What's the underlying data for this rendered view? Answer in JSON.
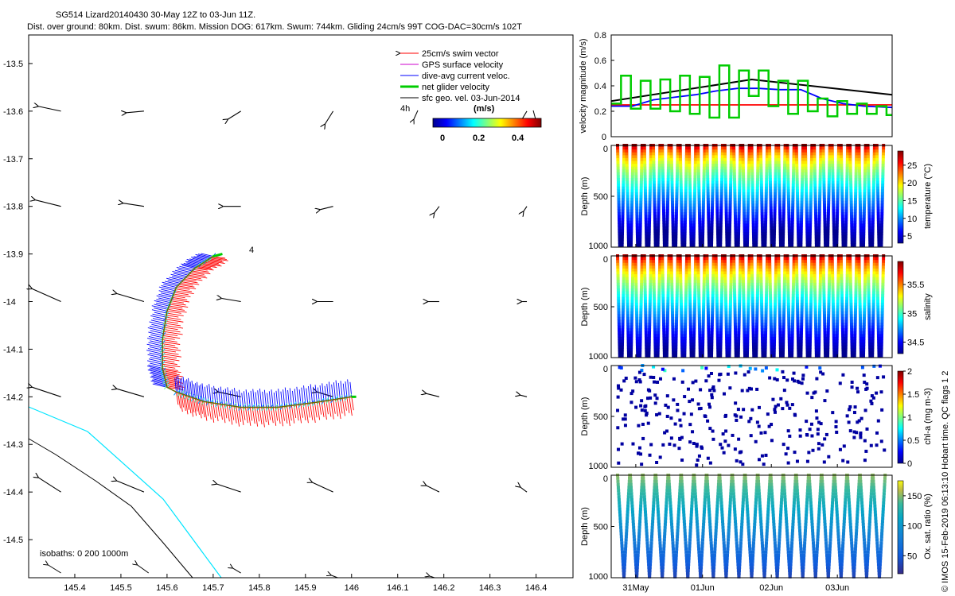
{
  "title_line1": "SG514 Lizard20140430 30-May 12Z to 03-Jun 11Z.",
  "title_line2": "Dist. over ground: 80km. Dist. swum: 86km. Mission DOG: 617km. Swum: 744km. Gliding 24cm/s 99T COG-DAC=30cm/s 102T",
  "map": {
    "xlim": [
      145.3,
      146.48
    ],
    "ylim": [
      -14.58,
      -13.44
    ],
    "xticks": [
      145.4,
      145.5,
      145.6,
      145.7,
      145.8,
      145.9,
      146,
      146.1,
      146.2,
      146.3,
      146.4
    ],
    "yticks": [
      -13.5,
      -13.6,
      -13.7,
      -13.8,
      -13.9,
      -14,
      -14.1,
      -14.2,
      -14.3,
      -14.4,
      -14.5
    ],
    "legend": [
      "25cm/s swim vector",
      "GPS surface velocity",
      "dive-avg current veloc.",
      "net glider velocity",
      "sfc geo. vel. 03-Jun-2014"
    ],
    "legend_colors": [
      "#ff0000",
      "#cc00cc",
      "#0000ff",
      "#00cc00",
      "#000000"
    ],
    "label_4h": "4h",
    "label_4": "4",
    "colorbar_title": "(m/s)",
    "colorbar_ticks": [
      "0",
      "0.2",
      "0.4"
    ],
    "isobaths_label": "isobaths: 0   200  1000m",
    "track": [
      [
        145.6,
        -14.18
      ],
      [
        145.59,
        -14.11
      ],
      [
        145.59,
        -14.05
      ],
      [
        145.61,
        -13.99
      ],
      [
        145.64,
        -13.95
      ],
      [
        145.67,
        -13.92
      ],
      [
        145.7,
        -13.91
      ],
      [
        145.62,
        -14.19
      ],
      [
        145.68,
        -14.21
      ],
      [
        145.76,
        -14.22
      ],
      [
        145.84,
        -14.22
      ],
      [
        145.92,
        -14.21
      ],
      [
        146.0,
        -14.2
      ]
    ]
  },
  "chart_data": [
    {
      "type": "line",
      "title": "velocity magnitude",
      "ylabel": "velocity magnitude (m/s)",
      "ylim": [
        0,
        0.8
      ],
      "yticks": [
        "0",
        "0.2",
        "0.4",
        "0.6",
        "0.8"
      ],
      "xlim": [
        0,
        4
      ],
      "series": [
        {
          "name": "sfc geo. vel.",
          "color": "#000000",
          "x": [
            0,
            2,
            4
          ],
          "y": [
            0.28,
            0.45,
            0.33
          ]
        },
        {
          "name": "25cm/s swim vector",
          "color": "#ff0000",
          "x": [
            0,
            4
          ],
          "y": [
            0.25,
            0.25
          ]
        },
        {
          "name": "dive-avg current veloc.",
          "color": "#0000ff",
          "x": [
            0,
            0.3,
            0.6,
            0.9,
            1.2,
            1.5,
            1.8,
            2.1,
            2.4,
            2.7,
            3.0,
            3.3,
            3.6,
            4.0
          ],
          "y": [
            0.24,
            0.24,
            0.29,
            0.31,
            0.33,
            0.36,
            0.38,
            0.38,
            0.37,
            0.37,
            0.3,
            0.26,
            0.24,
            0.23
          ]
        },
        {
          "name": "net glider velocity",
          "color": "#00cc00",
          "x": [
            0,
            0.14,
            0.14,
            0.28,
            0.28,
            0.42,
            0.42,
            0.56,
            0.56,
            0.7,
            0.7,
            0.84,
            0.84,
            0.98,
            0.98,
            1.12,
            1.12,
            1.26,
            1.26,
            1.4,
            1.4,
            1.54,
            1.54,
            1.68,
            1.68,
            1.82,
            1.82,
            1.96,
            1.96,
            2.1,
            2.1,
            2.24,
            2.24,
            2.38,
            2.38,
            2.52,
            2.52,
            2.66,
            2.66,
            2.8,
            2.8,
            2.94,
            2.94,
            3.08,
            3.08,
            3.22,
            3.22,
            3.36,
            3.36,
            3.5,
            3.5,
            3.64,
            3.64,
            3.78,
            3.78,
            3.92,
            3.92,
            4.0
          ],
          "y": [
            0.26,
            0.26,
            0.48,
            0.48,
            0.22,
            0.22,
            0.44,
            0.44,
            0.22,
            0.22,
            0.45,
            0.45,
            0.2,
            0.2,
            0.48,
            0.48,
            0.18,
            0.18,
            0.47,
            0.47,
            0.15,
            0.15,
            0.56,
            0.56,
            0.15,
            0.15,
            0.52,
            0.52,
            0.32,
            0.32,
            0.52,
            0.52,
            0.24,
            0.24,
            0.44,
            0.44,
            0.18,
            0.18,
            0.44,
            0.44,
            0.2,
            0.2,
            0.3,
            0.3,
            0.16,
            0.16,
            0.28,
            0.28,
            0.18,
            0.18,
            0.26,
            0.26,
            0.18,
            0.18,
            0.24,
            0.24,
            0.17,
            0.17
          ]
        }
      ]
    },
    {
      "type": "scatter",
      "title": "temperature",
      "ylabel": "Depth (m)",
      "yticks": [
        "0",
        "500",
        "1000"
      ],
      "colorbar_label": "temperature (°C)",
      "colorbar_ticks": [
        "5",
        "10",
        "15",
        "20",
        "25"
      ],
      "colorbar_range": [
        3,
        29
      ],
      "dives": 30,
      "max_depth": 1000
    },
    {
      "type": "scatter",
      "title": "salinity",
      "ylabel": "Depth (m)",
      "yticks": [
        "0",
        "500",
        "1000"
      ],
      "colorbar_label": "salinity",
      "colorbar_ticks": [
        "34.5",
        "35",
        "35.5"
      ],
      "colorbar_range": [
        34.3,
        35.9
      ],
      "dives": 30,
      "max_depth": 1000
    },
    {
      "type": "scatter",
      "title": "chl-a",
      "ylabel": "Depth (m)",
      "yticks": [
        "0",
        "500",
        "1000"
      ],
      "colorbar_label": "chl-a (mg m-3)",
      "colorbar_ticks": [
        "0",
        "0.5",
        "1",
        "1.5",
        "2"
      ],
      "colorbar_range": [
        0,
        2
      ],
      "max_depth": 1000
    },
    {
      "type": "scatter",
      "title": "oxygen saturation",
      "ylabel": "Depth (m)",
      "yticks": [
        "0",
        "500",
        "1000"
      ],
      "colorbar_label": "Ox. sat. ratio (%)",
      "colorbar_ticks": [
        "50",
        "100",
        "150"
      ],
      "colorbar_range": [
        20,
        175
      ],
      "max_depth": 1000,
      "xticks": [
        "31May",
        "01Jun",
        "02Jun",
        "03Jun"
      ]
    }
  ],
  "side_note": "© IMOS 15-Feb-2019 06:13:10 Hobart time. QC flags 1  2"
}
